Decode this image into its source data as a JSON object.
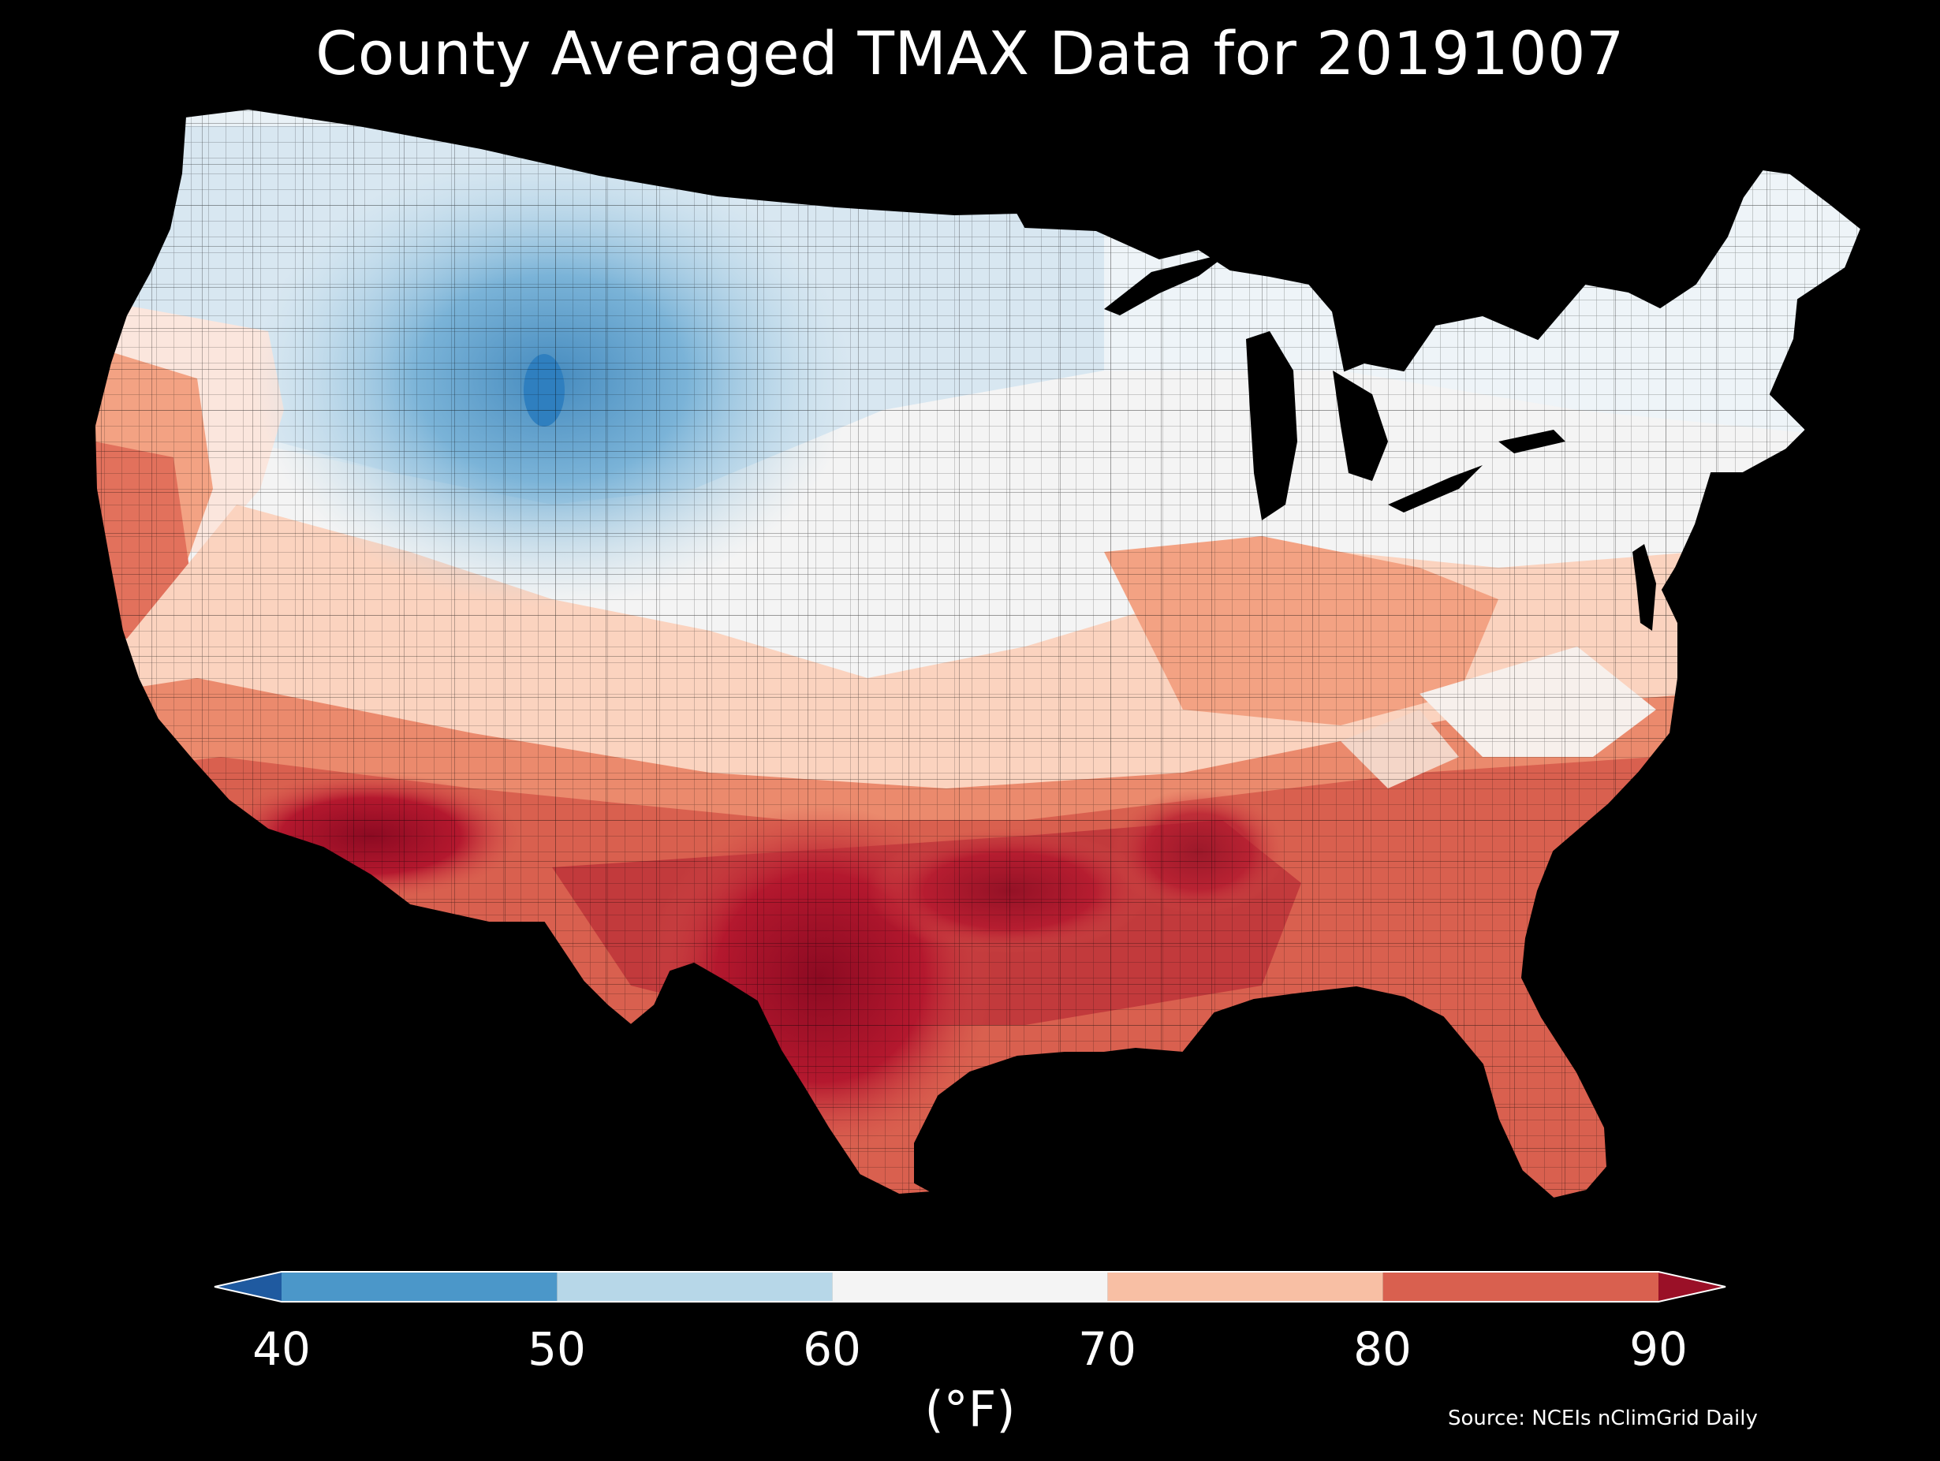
{
  "title": "County Averaged TMAX Data for 20191007",
  "colorbar": {
    "ticks": [
      "40",
      "50",
      "60",
      "70",
      "80",
      "90"
    ],
    "unit": "(°F)",
    "extend": "both",
    "bins": [
      {
        "from": null,
        "to": 40,
        "color": "#1f5aa0"
      },
      {
        "from": 40,
        "to": 50,
        "color": "#4b97c9"
      },
      {
        "from": 50,
        "to": 60,
        "color": "#b7d7e8"
      },
      {
        "from": 60,
        "to": 70,
        "color": "#f4f4f4"
      },
      {
        "from": 70,
        "to": 80,
        "color": "#f8bfa4"
      },
      {
        "from": 80,
        "to": 90,
        "color": "#d9604f"
      },
      {
        "from": 90,
        "to": null,
        "color": "#9a1027"
      }
    ]
  },
  "source": "Source: NCEIs nClimGrid Daily",
  "map": {
    "region": "Contiguous United States counties",
    "variable": "TMAX",
    "date": "20191007",
    "background_color": "#000000",
    "regional_pattern": [
      {
        "region": "Northern Rockies / Wyoming",
        "approx_F": "45-55",
        "color": "#4b97c9"
      },
      {
        "region": "Northern Plains / Upper Midwest",
        "approx_F": "55-62",
        "color": "#d6e7f1"
      },
      {
        "region": "Great Basin / Interior West",
        "approx_F": "60-72",
        "color": "#f4f4f4"
      },
      {
        "region": "Northeast / Great Lakes",
        "approx_F": "58-68",
        "color": "#eef4f8"
      },
      {
        "region": "Mid-Atlantic / Ohio Valley",
        "approx_F": "68-78",
        "color": "#f8bfa4"
      },
      {
        "region": "Southeast / Southern Plains",
        "approx_F": "80-90",
        "color": "#d9604f"
      },
      {
        "region": "Texas / Desert Southwest",
        "approx_F": "88-95",
        "color": "#9a1027"
      }
    ]
  }
}
